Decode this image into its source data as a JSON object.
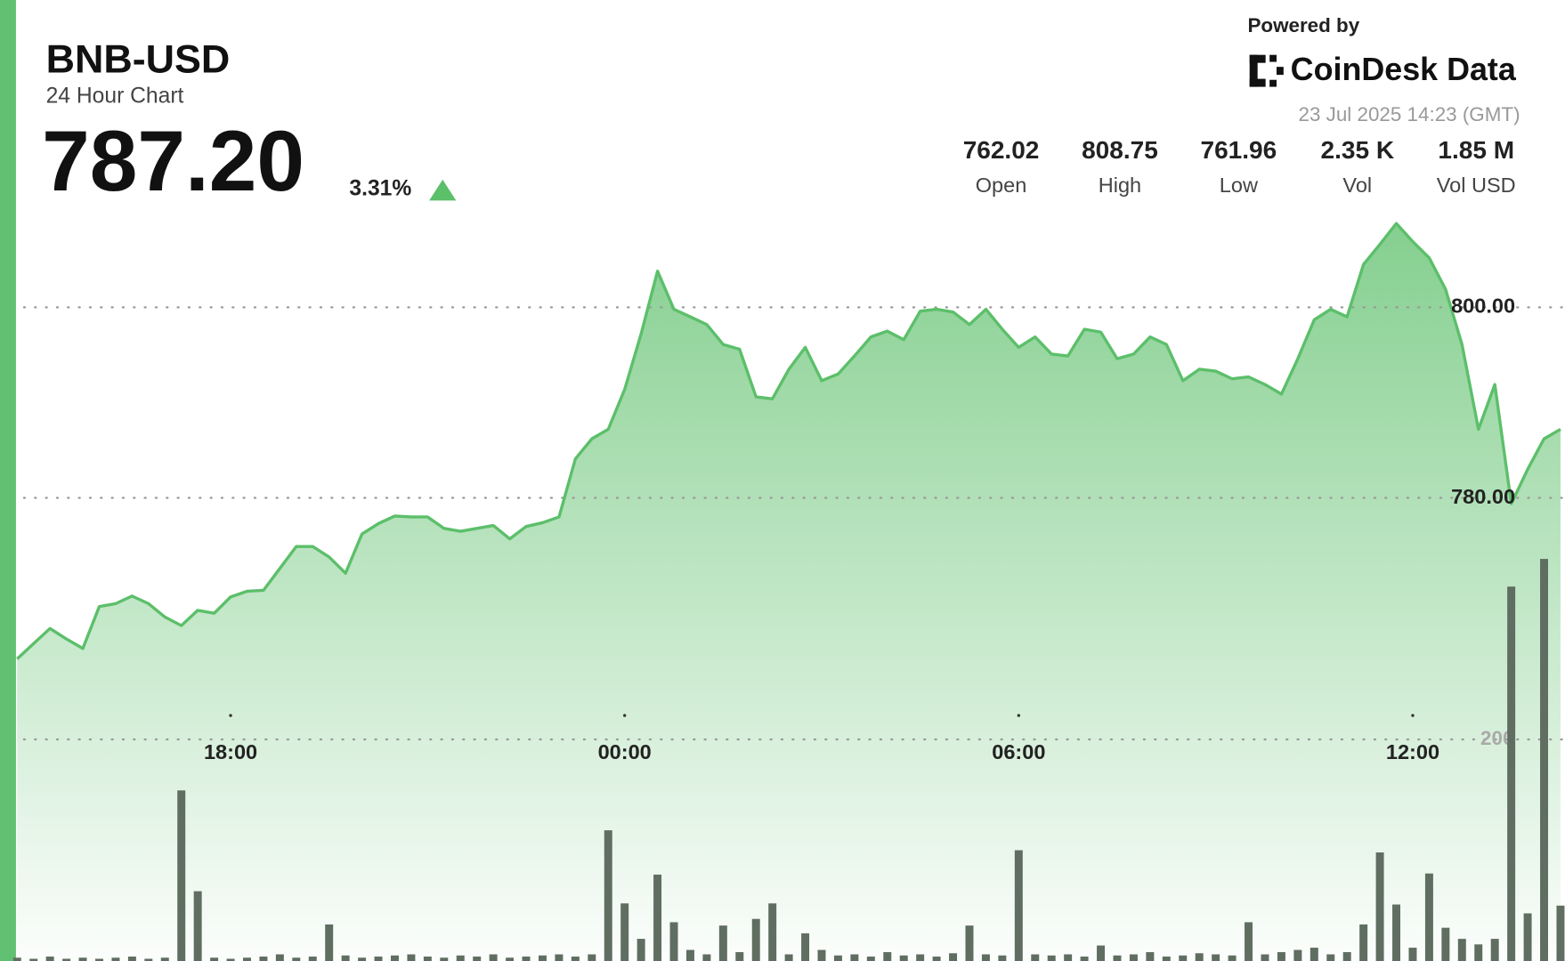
{
  "chart_data": {
    "type": "area",
    "title": "BNB-USD",
    "subtitle": "24 Hour Chart",
    "price": "787.20",
    "change": "3.31%",
    "powered_by": "Powered by",
    "brand": "CoinDesk Data",
    "timestamp": "23 Jul 2025 14:23 (GMT)",
    "stats": [
      {
        "value": "762.02",
        "label": "Open"
      },
      {
        "value": "808.75",
        "label": "High"
      },
      {
        "value": "761.96",
        "label": "Low"
      },
      {
        "value": "2.35 K",
        "label": "Vol"
      },
      {
        "value": "1.85 M",
        "label": "Vol USD"
      }
    ],
    "color": "#5cbf6a",
    "values": [
      763.1,
      764.7,
      766.3,
      765.2,
      764.2,
      768.6,
      768.9,
      769.7,
      768.9,
      767.5,
      766.6,
      768.2,
      767.9,
      769.6,
      770.2,
      770.3,
      772.6,
      774.9,
      774.9,
      773.8,
      772.1,
      776.2,
      777.3,
      778.1,
      778.0,
      778.0,
      776.8,
      776.5,
      776.8,
      777.1,
      775.7,
      777.0,
      777.4,
      778.0,
      784.1,
      786.2,
      787.2,
      791.4,
      797.2,
      803.8,
      799.8,
      799.0,
      798.2,
      796.1,
      795.6,
      790.6,
      790.4,
      793.5,
      795.8,
      792.3,
      793.0,
      794.9,
      796.9,
      797.5,
      796.6,
      799.6,
      799.8,
      799.5,
      798.2,
      799.8,
      797.7,
      795.8,
      796.9,
      795.1,
      794.9,
      797.7,
      797.4,
      794.6,
      795.1,
      796.9,
      796.1,
      792.3,
      793.5,
      793.3,
      792.5,
      792.7,
      791.9,
      790.9,
      794.6,
      798.7,
      799.8,
      799.0,
      804.5,
      806.6,
      808.8,
      806.9,
      805.2,
      801.9,
      796.1,
      787.2,
      791.9,
      779.4,
      783.0,
      786.2,
      787.2
    ],
    "volume": {
      "axis": "y2",
      "color": "#5f6e61",
      "values": [
        3,
        2,
        4,
        2,
        3,
        2,
        3,
        4,
        2,
        3,
        154,
        63,
        3,
        2,
        3,
        4,
        6,
        3,
        4,
        33,
        5,
        3,
        4,
        5,
        6,
        4,
        3,
        5,
        4,
        6,
        3,
        4,
        5,
        6,
        4,
        6,
        118,
        52,
        20,
        78,
        35,
        10,
        6,
        32,
        8,
        38,
        52,
        6,
        25,
        10,
        5,
        6,
        4,
        8,
        5,
        6,
        4,
        7,
        32,
        6,
        5,
        100,
        6,
        5,
        6,
        4,
        14,
        5,
        6,
        8,
        4,
        5,
        7,
        6,
        5,
        35,
        6,
        8,
        10,
        12,
        6,
        8,
        33,
        98,
        51,
        12,
        79,
        30,
        20,
        15,
        20,
        338,
        43,
        363,
        50
      ]
    },
    "xlim": [
      0,
      94
    ],
    "xticks": [
      {
        "value": 13,
        "label": "18:00"
      },
      {
        "value": 37,
        "label": "00:00"
      },
      {
        "value": 61,
        "label": "06:00"
      },
      {
        "value": 85,
        "label": "12:00"
      }
    ],
    "ylim": [
      731.4,
      810.26
    ],
    "yticks": [
      {
        "value": 780,
        "label": "780.00"
      },
      {
        "value": 800,
        "label": "800.00"
      }
    ],
    "y2lim": [
      0,
      400
    ],
    "y2ticks": [
      200
    ]
  }
}
